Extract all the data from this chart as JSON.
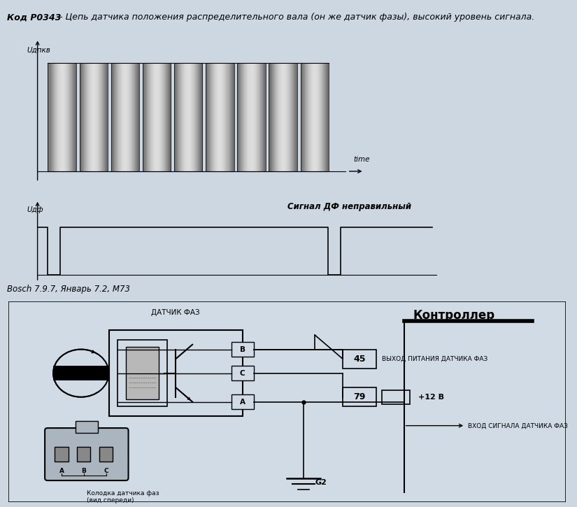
{
  "title_bold": "Код P0343",
  "title_desc": " - Цепь датчика положения распределительного вала (он же датчик фазы), высокий уровень сигнала.",
  "y_label_top": "Uдпкв",
  "y_label_bottom": "Uдф",
  "time_label": "time",
  "signal_label": "Сигнал ДФ неправильный",
  "bosch_text": "Bosch 7.9.7, Январь 7.2, М73",
  "controller_title": "Контроллер",
  "bg_color": "#ccd7e2",
  "diag_bg": "#d0dbe5",
  "white_bg": "#ffffff",
  "num_pulses": 9,
  "diagram_labels": {
    "sensor_title": "ДАТЧИК ФАЗ",
    "connector_label": "Колодка датчика фаз\n(вид спереди)",
    "pin_45": "45",
    "pin_79": "79",
    "pin_label_45": "ВЫХОД ПИТАНИЯ ДАТЧИКА ФАЗ",
    "pin_label_79": "+12 В",
    "signal_in_label": "ВХОД СИГНАЛА ДАТЧИКА ФАЗ",
    "g2_label": "G2",
    "pin_b": "B",
    "pin_c": "C",
    "pin_a": "A"
  }
}
